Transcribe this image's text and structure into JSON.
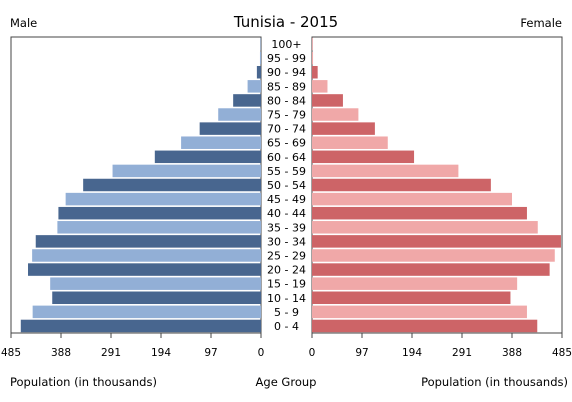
{
  "chart_data": {
    "type": "bar",
    "title": "Tunisia - 2015",
    "left_label": "Male",
    "right_label": "Female",
    "center_label": "Age Group",
    "xlabel_left": "Population (in thousands)",
    "xlabel_right": "Population (in thousands)",
    "xlim": [
      0,
      485
    ],
    "ticks": [
      "485",
      "388",
      "291",
      "194",
      "97",
      "0",
      "0",
      "97",
      "194",
      "291",
      "388",
      "485"
    ],
    "tick_values": [
      485,
      388,
      291,
      194,
      97,
      0,
      0,
      97,
      194,
      291,
      388,
      485
    ],
    "categories": [
      "100+",
      "95 - 99",
      "90 - 94",
      "85 - 89",
      "80 - 84",
      "75 - 79",
      "70 - 74",
      "65 - 69",
      "60 - 64",
      "55 - 59",
      "50 - 54",
      "45 - 49",
      "40 - 44",
      "35 - 39",
      "30 - 34",
      "25 - 29",
      "20 - 24",
      "15 - 19",
      "10 - 14",
      "5 - 9",
      "0 - 4"
    ],
    "series": [
      {
        "name": "Male",
        "values": [
          1,
          2,
          8,
          26,
          54,
          83,
          119,
          155,
          206,
          288,
          345,
          379,
          393,
          395,
          437,
          444,
          452,
          409,
          405,
          443,
          466
        ]
      },
      {
        "name": "Female",
        "values": [
          1,
          2,
          11,
          30,
          60,
          90,
          122,
          147,
          198,
          284,
          347,
          388,
          417,
          438,
          483,
          471,
          461,
          398,
          385,
          417,
          437
        ]
      }
    ],
    "colors": {
      "male_dark": "#48668f",
      "male_light": "#92afd6",
      "female_dark": "#cd6467",
      "female_light": "#f0a8a8",
      "frame": "#444444"
    }
  }
}
